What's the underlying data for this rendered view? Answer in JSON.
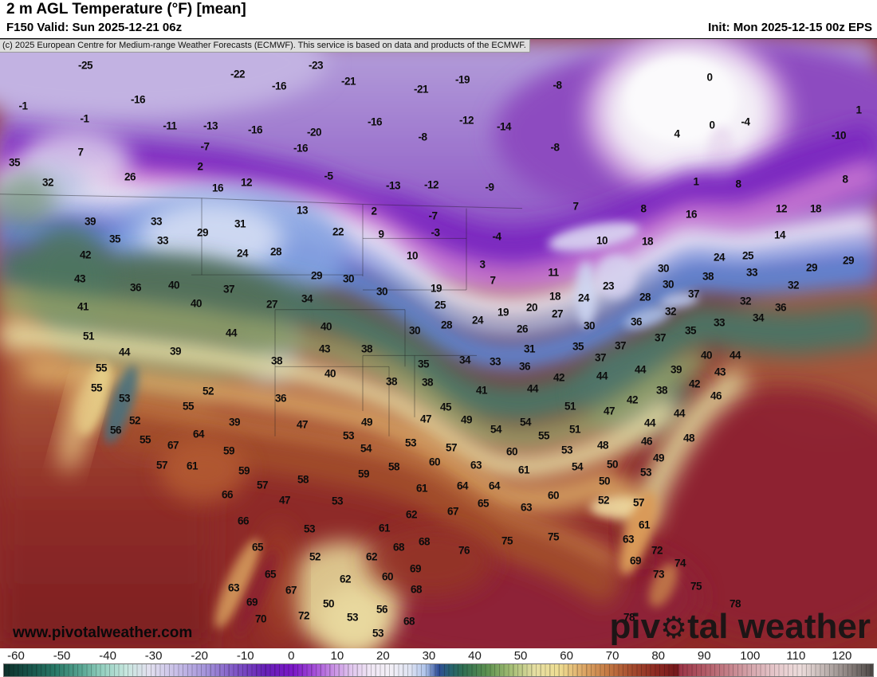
{
  "header": {
    "title": "2 m AGL Temperature (°F) [mean]",
    "subtitle": "F150 Valid: Sun 2025-12-21 06z",
    "init": "Init: Mon 2025-12-15 00z EPS"
  },
  "copyright": "(c) 2025 European Centre for Medium-range Weather Forecasts (ECMWF). This service is based on data and products of the ECMWF.",
  "watermark": "www.pivotalweather.com",
  "logo": {
    "pre": "piv",
    "gear": "⚙",
    "post": "tal weather"
  },
  "colorbar": {
    "ticks": [
      -60,
      -50,
      -40,
      -30,
      -20,
      -10,
      0,
      10,
      20,
      30,
      40,
      50,
      60,
      70,
      80,
      90,
      100,
      110,
      120
    ],
    "gradient": [
      [
        0,
        "#0e2f2a"
      ],
      [
        0.03,
        "#17544a"
      ],
      [
        0.06,
        "#2a7a68"
      ],
      [
        0.09,
        "#5aa794"
      ],
      [
        0.111,
        "#8fcdbc"
      ],
      [
        0.14,
        "#c6e6de"
      ],
      [
        0.167,
        "#e2e0ef"
      ],
      [
        0.2,
        "#c6bde7"
      ],
      [
        0.233,
        "#a392d9"
      ],
      [
        0.267,
        "#7e55c5"
      ],
      [
        0.3,
        "#6620b6"
      ],
      [
        0.333,
        "#7b17c7"
      ],
      [
        0.356,
        "#a24bd7"
      ],
      [
        0.378,
        "#c78de3"
      ],
      [
        0.4,
        "#e1c7ee"
      ],
      [
        0.422,
        "#f0e7f5"
      ],
      [
        0.444,
        "#f3f0f7"
      ],
      [
        0.467,
        "#dfe4f3"
      ],
      [
        0.485,
        "#aec3ea"
      ],
      [
        0.5,
        "#2e4d96"
      ],
      [
        0.514,
        "#27636f"
      ],
      [
        0.528,
        "#2f6e52"
      ],
      [
        0.556,
        "#5d9150"
      ],
      [
        0.583,
        "#a3bd74"
      ],
      [
        0.611,
        "#e6dfa3"
      ],
      [
        0.639,
        "#eedd92"
      ],
      [
        0.667,
        "#dda766"
      ],
      [
        0.694,
        "#c47a44"
      ],
      [
        0.722,
        "#a54c2e"
      ],
      [
        0.75,
        "#8d2a22"
      ],
      [
        0.775,
        "#75181b"
      ],
      [
        0.778,
        "#9c3547"
      ],
      [
        0.806,
        "#b25a66"
      ],
      [
        0.833,
        "#c48089"
      ],
      [
        0.861,
        "#d6a8ae"
      ],
      [
        0.889,
        "#e6c9cc"
      ],
      [
        0.917,
        "#ecdcdb"
      ],
      [
        0.944,
        "#c0b5b2"
      ],
      [
        0.972,
        "#8a817e"
      ],
      [
        1,
        "#4a4543"
      ]
    ]
  },
  "map": {
    "values": [
      [
        -25,
        107,
        81
      ],
      [
        -22,
        298,
        92
      ],
      [
        -23,
        396,
        81
      ],
      [
        -21,
        437,
        101
      ],
      [
        -19,
        580,
        99
      ],
      [
        -21,
        528,
        111
      ],
      [
        -8,
        699,
        106
      ],
      [
        0,
        890,
        96
      ],
      [
        1,
        1077,
        137
      ],
      [
        -16,
        350,
        107
      ],
      [
        -16,
        173,
        124
      ],
      [
        -1,
        29,
        132
      ],
      [
        -1,
        106,
        148
      ],
      [
        -11,
        213,
        157
      ],
      [
        -13,
        264,
        157
      ],
      [
        -16,
        320,
        162
      ],
      [
        -16,
        470,
        152
      ],
      [
        -12,
        585,
        150
      ],
      [
        -14,
        632,
        158
      ],
      [
        -20,
        394,
        165
      ],
      [
        -16,
        377,
        185
      ],
      [
        -8,
        530,
        171
      ],
      [
        -8,
        696,
        184
      ],
      [
        -4,
        935,
        152
      ],
      [
        0,
        893,
        156
      ],
      [
        4,
        849,
        167
      ],
      [
        -10,
        1052,
        169
      ],
      [
        7,
        101,
        190
      ],
      [
        -7,
        257,
        183
      ],
      [
        2,
        251,
        208
      ],
      [
        -5,
        412,
        220
      ],
      [
        -13,
        493,
        232
      ],
      [
        -12,
        541,
        231
      ],
      [
        -9,
        614,
        234
      ],
      [
        1,
        873,
        227
      ],
      [
        8,
        926,
        230
      ],
      [
        8,
        1060,
        224
      ],
      [
        35,
        18,
        203
      ],
      [
        32,
        60,
        228
      ],
      [
        26,
        163,
        221
      ],
      [
        16,
        273,
        235
      ],
      [
        12,
        309,
        228
      ],
      [
        8,
        807,
        261
      ],
      [
        16,
        867,
        268
      ],
      [
        12,
        980,
        261
      ],
      [
        18,
        1023,
        261
      ],
      [
        14,
        978,
        294
      ],
      [
        10,
        755,
        301
      ],
      [
        18,
        812,
        302
      ],
      [
        24,
        902,
        322
      ],
      [
        25,
        938,
        320
      ],
      [
        39,
        113,
        277
      ],
      [
        33,
        196,
        277
      ],
      [
        35,
        144,
        299
      ],
      [
        33,
        204,
        301
      ],
      [
        29,
        254,
        291
      ],
      [
        31,
        301,
        280
      ],
      [
        13,
        379,
        263
      ],
      [
        2,
        469,
        264
      ],
      [
        -7,
        543,
        270
      ],
      [
        22,
        424,
        290
      ],
      [
        9,
        478,
        293
      ],
      [
        -3,
        546,
        291
      ],
      [
        -4,
        623,
        296
      ],
      [
        7,
        722,
        258
      ],
      [
        42,
        107,
        319
      ],
      [
        24,
        304,
        317
      ],
      [
        28,
        346,
        315
      ],
      [
        10,
        517,
        320
      ],
      [
        3,
        605,
        331
      ],
      [
        7,
        618,
        351
      ],
      [
        11,
        694,
        341
      ],
      [
        23,
        763,
        358
      ],
      [
        30,
        832,
        336
      ],
      [
        38,
        888,
        346
      ],
      [
        33,
        943,
        341
      ],
      [
        29,
        1018,
        335
      ],
      [
        29,
        1064,
        326
      ],
      [
        43,
        100,
        349
      ],
      [
        29,
        397,
        345
      ],
      [
        30,
        437,
        349
      ],
      [
        36,
        170,
        360
      ],
      [
        40,
        218,
        357
      ],
      [
        37,
        287,
        362
      ],
      [
        30,
        479,
        365
      ],
      [
        19,
        547,
        361
      ],
      [
        34,
        385,
        374
      ],
      [
        40,
        246,
        380
      ],
      [
        27,
        341,
        381
      ],
      [
        41,
        104,
        384
      ],
      [
        25,
        552,
        382
      ],
      [
        18,
        696,
        371
      ],
      [
        24,
        732,
        373
      ],
      [
        20,
        667,
        385
      ],
      [
        30,
        838,
        356
      ],
      [
        37,
        870,
        368
      ],
      [
        32,
        995,
        357
      ],
      [
        28,
        809,
        372
      ],
      [
        27,
        699,
        393
      ],
      [
        19,
        631,
        391
      ],
      [
        24,
        599,
        401
      ],
      [
        40,
        409,
        409
      ],
      [
        28,
        560,
        407
      ],
      [
        26,
        655,
        412
      ],
      [
        30,
        520,
        414
      ],
      [
        32,
        841,
        390
      ],
      [
        32,
        935,
        377
      ],
      [
        36,
        979,
        385
      ],
      [
        34,
        951,
        398
      ],
      [
        33,
        902,
        404
      ],
      [
        35,
        866,
        414
      ],
      [
        36,
        798,
        403
      ],
      [
        30,
        739,
        408
      ],
      [
        37,
        828,
        423
      ],
      [
        37,
        778,
        433
      ],
      [
        37,
        753,
        448
      ],
      [
        44,
        290,
        417
      ],
      [
        51,
        111,
        421
      ],
      [
        44,
        156,
        441
      ],
      [
        39,
        220,
        440
      ],
      [
        43,
        407,
        437
      ],
      [
        38,
        460,
        437
      ],
      [
        31,
        664,
        437
      ],
      [
        35,
        725,
        434
      ],
      [
        40,
        886,
        445
      ],
      [
        44,
        922,
        445
      ],
      [
        44,
        803,
        463
      ],
      [
        39,
        848,
        463
      ],
      [
        43,
        903,
        466
      ],
      [
        44,
        755,
        471
      ],
      [
        42,
        871,
        481
      ],
      [
        38,
        830,
        489
      ],
      [
        46,
        898,
        496
      ],
      [
        42,
        793,
        501
      ],
      [
        47,
        764,
        515
      ],
      [
        44,
        852,
        518
      ],
      [
        44,
        815,
        530
      ],
      [
        55,
        127,
        461
      ],
      [
        38,
        347,
        452
      ],
      [
        40,
        414,
        468
      ],
      [
        35,
        531,
        456
      ],
      [
        34,
        583,
        451
      ],
      [
        33,
        621,
        453
      ],
      [
        36,
        658,
        459
      ],
      [
        42,
        701,
        473
      ],
      [
        55,
        121,
        486
      ],
      [
        53,
        156,
        499
      ],
      [
        52,
        261,
        490
      ],
      [
        36,
        352,
        499
      ],
      [
        38,
        491,
        478
      ],
      [
        38,
        536,
        479
      ],
      [
        41,
        604,
        489
      ],
      [
        44,
        668,
        487
      ],
      [
        45,
        559,
        510
      ],
      [
        51,
        715,
        509
      ],
      [
        55,
        236,
        509
      ],
      [
        52,
        169,
        527
      ],
      [
        47,
        534,
        525
      ],
      [
        49,
        585,
        526
      ],
      [
        49,
        460,
        529
      ],
      [
        47,
        379,
        532
      ],
      [
        39,
        294,
        529
      ],
      [
        54,
        659,
        529
      ],
      [
        51,
        721,
        538
      ],
      [
        54,
        622,
        538
      ],
      [
        56,
        145,
        539
      ],
      [
        64,
        249,
        544
      ],
      [
        53,
        437,
        546
      ],
      [
        55,
        682,
        546
      ],
      [
        55,
        182,
        551
      ],
      [
        67,
        217,
        558
      ],
      [
        53,
        515,
        555
      ],
      [
        57,
        566,
        561
      ],
      [
        54,
        459,
        562
      ],
      [
        53,
        711,
        564
      ],
      [
        59,
        287,
        565
      ],
      [
        60,
        642,
        566
      ],
      [
        48,
        864,
        549
      ],
      [
        48,
        756,
        558
      ],
      [
        46,
        811,
        553
      ],
      [
        60,
        545,
        579
      ],
      [
        57,
        203,
        583
      ],
      [
        61,
        241,
        584
      ],
      [
        63,
        597,
        583
      ],
      [
        58,
        494,
        585
      ],
      [
        54,
        724,
        585
      ],
      [
        49,
        826,
        574
      ],
      [
        50,
        768,
        582
      ],
      [
        61,
        657,
        589
      ],
      [
        59,
        306,
        590
      ],
      [
        59,
        456,
        594
      ],
      [
        58,
        380,
        601
      ],
      [
        53,
        810,
        592
      ],
      [
        57,
        329,
        608
      ],
      [
        64,
        580,
        609
      ],
      [
        64,
        620,
        609
      ],
      [
        61,
        529,
        612
      ],
      [
        50,
        758,
        603
      ],
      [
        66,
        285,
        620
      ],
      [
        60,
        694,
        621
      ],
      [
        47,
        357,
        627
      ],
      [
        53,
        423,
        628
      ],
      [
        65,
        606,
        631
      ],
      [
        63,
        660,
        636
      ],
      [
        67,
        568,
        641
      ],
      [
        62,
        516,
        645
      ],
      [
        52,
        757,
        627
      ],
      [
        57,
        801,
        630
      ],
      [
        66,
        305,
        653
      ],
      [
        53,
        388,
        663
      ],
      [
        61,
        482,
        662
      ],
      [
        61,
        808,
        658
      ],
      [
        65,
        323,
        686
      ],
      [
        52,
        395,
        698
      ],
      [
        68,
        532,
        679
      ],
      [
        68,
        500,
        686
      ],
      [
        62,
        466,
        698
      ],
      [
        76,
        582,
        690
      ],
      [
        75,
        636,
        678
      ],
      [
        75,
        694,
        673
      ],
      [
        63,
        788,
        676
      ],
      [
        72,
        824,
        690
      ],
      [
        69,
        797,
        703
      ],
      [
        74,
        853,
        706
      ],
      [
        65,
        339,
        720
      ],
      [
        69,
        521,
        713
      ],
      [
        73,
        826,
        720
      ],
      [
        62,
        433,
        726
      ],
      [
        60,
        486,
        723
      ],
      [
        63,
        293,
        737
      ],
      [
        67,
        365,
        740
      ],
      [
        68,
        522,
        739
      ],
      [
        75,
        873,
        735
      ],
      [
        69,
        316,
        755
      ],
      [
        50,
        412,
        757
      ],
      [
        78,
        922,
        757
      ],
      [
        56,
        479,
        764
      ],
      [
        53,
        442,
        774
      ],
      [
        72,
        381,
        772
      ],
      [
        70,
        327,
        776
      ],
      [
        68,
        513,
        779
      ],
      [
        78,
        789,
        774
      ],
      [
        53,
        474,
        794
      ]
    ]
  }
}
